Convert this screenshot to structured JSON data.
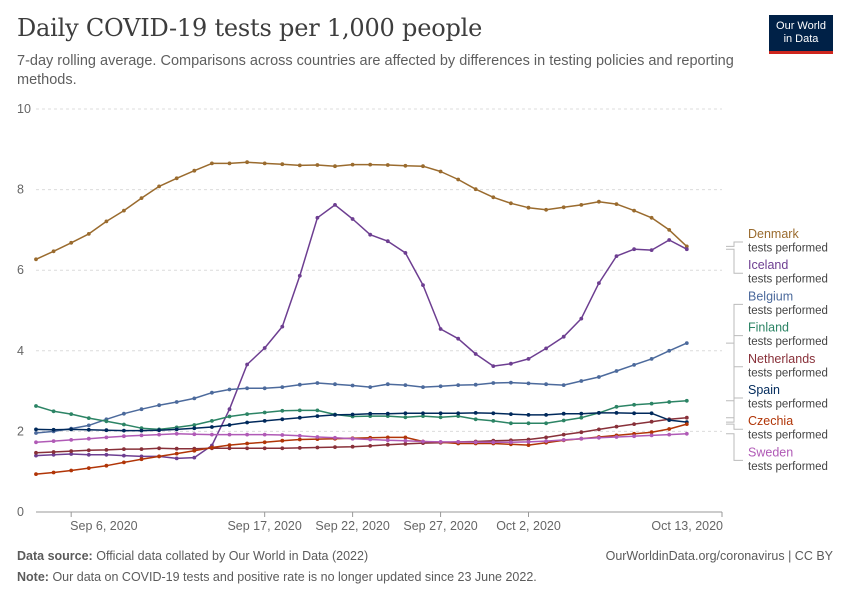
{
  "header": {
    "title": "Daily COVID-19 tests per 1,000 people",
    "subtitle": "7-day rolling average. Comparisons across countries are affected by differences in testing policies and reporting methods.",
    "logo_line1": "Our World",
    "logo_line2": "in Data"
  },
  "footer": {
    "source_label": "Data source:",
    "source_text": "Official data collated by Our World in Data (2022)",
    "link_text": "OurWorldinData.org/coronavirus | CC BY",
    "note_label": "Note:",
    "note_text": "Our data on COVID-19 tests and positive rate is no longer updated since 23 June 2022."
  },
  "colors": {
    "Denmark": "#9a6b2e",
    "Iceland": "#6d3e91",
    "Belgium": "#4c6a9c",
    "Finland": "#2c8465",
    "Netherlands": "#883039",
    "Spain": "#00295b",
    "Czechia": "#b13507",
    "Sweden": "#b05ab6"
  },
  "chart_data": {
    "type": "line",
    "title": "Daily COVID-19 tests per 1,000 people",
    "subtitle": "7-day rolling average. Comparisons across countries are affected by differences in testing policies and reporting methods.",
    "x_start": "2020-09-04",
    "x_end": "2020-10-13",
    "x_ticks": [
      {
        "date": "2020-09-06",
        "label": "Sep 6, 2020"
      },
      {
        "date": "2020-09-17",
        "label": "Sep 17, 2020"
      },
      {
        "date": "2020-09-22",
        "label": "Sep 22, 2020"
      },
      {
        "date": "2020-09-27",
        "label": "Sep 27, 2020"
      },
      {
        "date": "2020-10-02",
        "label": "Oct 2, 2020"
      },
      {
        "date": "2020-10-13",
        "label": "Oct 13, 2020"
      }
    ],
    "ylim": [
      0,
      10
    ],
    "y_ticks": [
      0,
      2,
      4,
      6,
      8,
      10
    ],
    "grid": "horizontal dashed",
    "legend": "right, line-end labels",
    "series_sublabel": "tests performed",
    "series": [
      {
        "name": "Denmark",
        "values": [
          6.27,
          6.47,
          6.68,
          6.9,
          7.21,
          7.48,
          7.79,
          8.08,
          8.28,
          8.47,
          8.65,
          8.65,
          8.68,
          8.65,
          8.63,
          8.6,
          8.61,
          8.58,
          8.62,
          8.62,
          8.61,
          8.59,
          8.58,
          8.45,
          8.25,
          8.01,
          7.81,
          7.66,
          7.55,
          7.5,
          7.56,
          7.62,
          7.7,
          7.64,
          7.48,
          7.3,
          7.0,
          6.59
        ]
      },
      {
        "name": "Iceland",
        "values": [
          1.4,
          1.42,
          1.44,
          1.42,
          1.42,
          1.4,
          1.38,
          1.38,
          1.33,
          1.35,
          1.65,
          2.55,
          3.66,
          4.07,
          4.6,
          5.86,
          7.3,
          7.62,
          7.27,
          6.88,
          6.72,
          6.43,
          5.63,
          4.54,
          4.3,
          3.92,
          3.62,
          3.68,
          3.8,
          4.06,
          4.35,
          4.8,
          5.68,
          6.35,
          6.52,
          6.5,
          6.75,
          6.52
        ]
      },
      {
        "name": "Belgium",
        "values": [
          1.96,
          2.0,
          2.07,
          2.15,
          2.3,
          2.44,
          2.55,
          2.65,
          2.73,
          2.82,
          2.96,
          3.04,
          3.07,
          3.07,
          3.1,
          3.16,
          3.2,
          3.17,
          3.14,
          3.1,
          3.17,
          3.15,
          3.1,
          3.12,
          3.15,
          3.16,
          3.2,
          3.21,
          3.19,
          3.17,
          3.15,
          3.25,
          3.35,
          3.5,
          3.65,
          3.8,
          4.0,
          4.19
        ]
      },
      {
        "name": "Finland",
        "values": [
          2.63,
          2.5,
          2.43,
          2.33,
          2.25,
          2.17,
          2.08,
          2.05,
          2.1,
          2.16,
          2.26,
          2.37,
          2.43,
          2.47,
          2.51,
          2.52,
          2.52,
          2.42,
          2.37,
          2.38,
          2.38,
          2.35,
          2.38,
          2.35,
          2.38,
          2.3,
          2.26,
          2.2,
          2.2,
          2.2,
          2.27,
          2.34,
          2.46,
          2.61,
          2.66,
          2.69,
          2.73,
          2.76
        ]
      },
      {
        "name": "Netherlands",
        "values": [
          1.47,
          1.49,
          1.51,
          1.53,
          1.54,
          1.56,
          1.56,
          1.58,
          1.57,
          1.57,
          1.58,
          1.58,
          1.58,
          1.58,
          1.58,
          1.59,
          1.6,
          1.61,
          1.62,
          1.64,
          1.67,
          1.69,
          1.71,
          1.72,
          1.74,
          1.75,
          1.77,
          1.78,
          1.8,
          1.85,
          1.92,
          1.98,
          2.05,
          2.12,
          2.18,
          2.24,
          2.3,
          2.34
        ]
      },
      {
        "name": "Spain",
        "values": [
          2.05,
          2.04,
          2.05,
          2.04,
          2.03,
          2.02,
          2.02,
          2.03,
          2.05,
          2.08,
          2.11,
          2.16,
          2.22,
          2.26,
          2.3,
          2.34,
          2.38,
          2.41,
          2.42,
          2.44,
          2.44,
          2.45,
          2.45,
          2.45,
          2.45,
          2.46,
          2.45,
          2.43,
          2.41,
          2.41,
          2.44,
          2.44,
          2.46,
          2.46,
          2.45,
          2.45,
          2.28,
          2.23
        ]
      },
      {
        "name": "Czechia",
        "values": [
          0.94,
          0.98,
          1.03,
          1.09,
          1.15,
          1.23,
          1.31,
          1.38,
          1.45,
          1.52,
          1.6,
          1.66,
          1.7,
          1.73,
          1.77,
          1.8,
          1.81,
          1.82,
          1.83,
          1.84,
          1.85,
          1.85,
          1.75,
          1.73,
          1.7,
          1.7,
          1.7,
          1.68,
          1.66,
          1.72,
          1.78,
          1.82,
          1.86,
          1.9,
          1.94,
          1.98,
          2.06,
          2.18
        ]
      },
      {
        "name": "Sweden",
        "values": [
          1.73,
          1.76,
          1.79,
          1.82,
          1.85,
          1.88,
          1.9,
          1.92,
          1.94,
          1.93,
          1.92,
          1.92,
          1.92,
          1.92,
          1.91,
          1.89,
          1.86,
          1.84,
          1.82,
          1.8,
          1.78,
          1.77,
          1.75,
          1.74,
          1.74,
          1.73,
          1.73,
          1.73,
          1.74,
          1.76,
          1.79,
          1.82,
          1.84,
          1.86,
          1.88,
          1.9,
          1.92,
          1.94
        ]
      }
    ]
  }
}
